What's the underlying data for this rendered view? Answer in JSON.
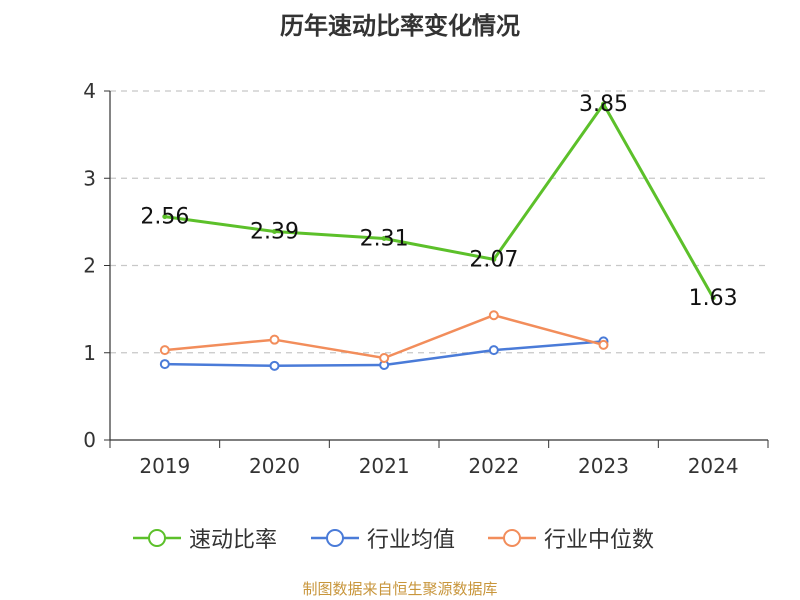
{
  "chart_data": {
    "type": "line",
    "title": "历年速动比率变化情况",
    "categories": [
      "2019",
      "2020",
      "2021",
      "2022",
      "2023",
      "2024"
    ],
    "ylim": [
      0,
      4
    ],
    "yticks": [
      0,
      1,
      2,
      3,
      4
    ],
    "grid": true,
    "legend_position": "bottom",
    "series": [
      {
        "name": "速动比率",
        "color": "#5cc02a",
        "values": [
          2.56,
          2.39,
          2.31,
          2.07,
          3.85,
          1.63
        ],
        "labels": [
          "2.56",
          "2.39",
          "2.31",
          "2.07",
          "3.85",
          "1.63"
        ]
      },
      {
        "name": "行业均值",
        "color": "#4a7bd8",
        "values": [
          0.87,
          0.85,
          0.86,
          1.03,
          1.13,
          null
        ]
      },
      {
        "name": "行业中位数",
        "color": "#f28d5b",
        "values": [
          1.03,
          1.15,
          0.94,
          1.43,
          1.09,
          null
        ]
      }
    ]
  },
  "source_note": "制图数据来自恒生聚源数据库"
}
